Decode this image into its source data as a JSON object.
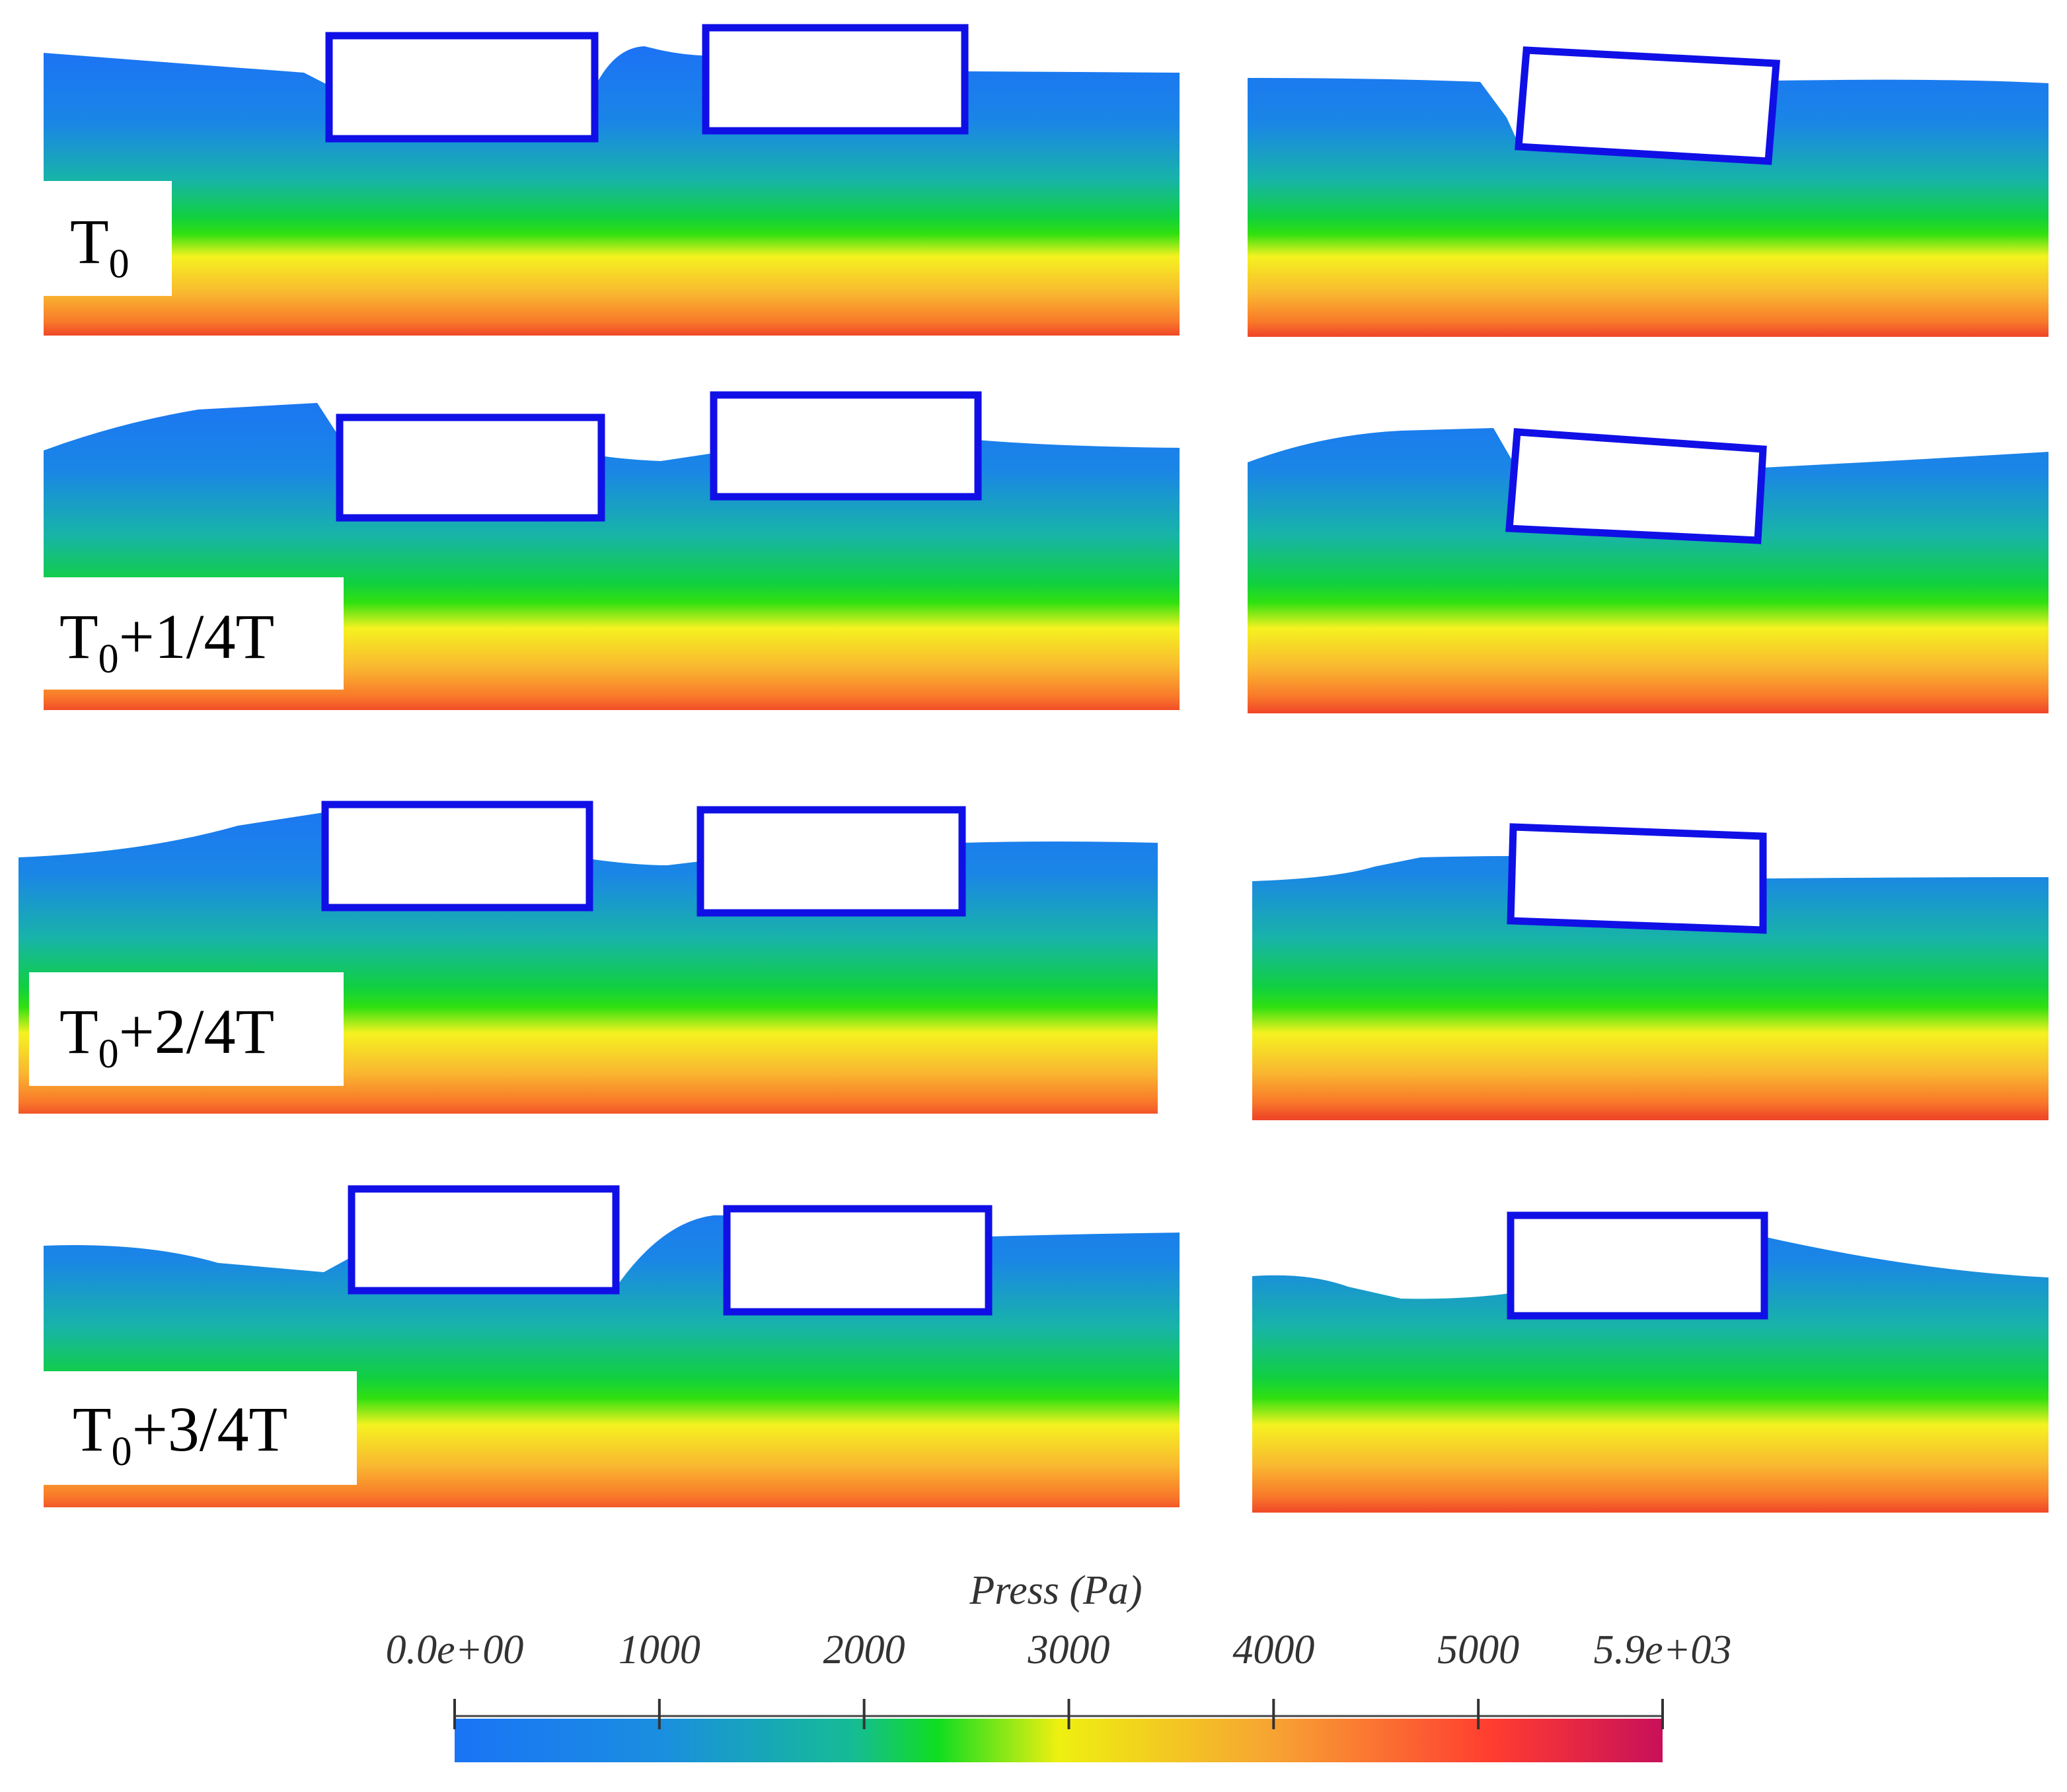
{
  "figure": {
    "rows": [
      {
        "caption_main": "T",
        "caption_sub": "0",
        "caption_rest": ""
      },
      {
        "caption_main": "T",
        "caption_sub": "0",
        "caption_rest": "+1/4T"
      },
      {
        "caption_main": "T",
        "caption_sub": "0",
        "caption_rest": "+2/4T"
      },
      {
        "caption_main": "T",
        "caption_sub": "0",
        "caption_rest": "+3/4T"
      }
    ],
    "columns": [
      "two-box-configuration",
      "single-box-configuration"
    ]
  },
  "colorbar": {
    "title": "Press (Pa)",
    "min": 0,
    "max": 5900,
    "ticks": [
      {
        "value": 0,
        "label": "0.0e+00"
      },
      {
        "value": 1000,
        "label": "1000"
      },
      {
        "value": 2000,
        "label": "2000"
      },
      {
        "value": 3000,
        "label": "3000"
      },
      {
        "value": 4000,
        "label": "4000"
      },
      {
        "value": 5000,
        "label": "5000"
      },
      {
        "value": 5900,
        "label": "5.9e+03"
      }
    ],
    "colors": [
      "#1a78f2",
      "#1aa8c8",
      "#10c070",
      "#10dd10",
      "#eeee10",
      "#f7a233",
      "#ff3030",
      "#c8105a"
    ]
  },
  "box_color": "#1010e6"
}
